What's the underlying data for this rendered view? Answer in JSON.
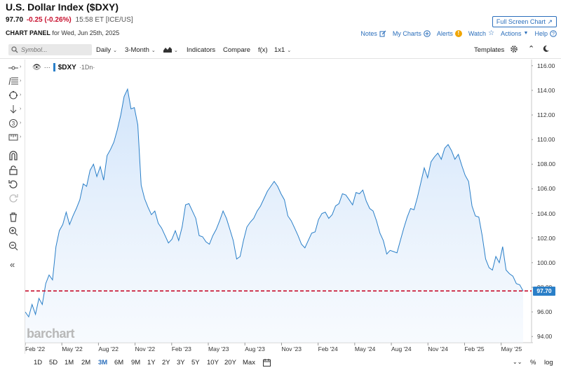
{
  "header": {
    "title": "U.S. Dollar Index ($DXY)",
    "price": "97.70",
    "change": "-0.25 (-0.26%)",
    "time_source": "15:58 ET [ICE/US]",
    "panel_label": "CHART PANEL",
    "panel_date": "for Wed, Jun 25th, 2025",
    "fullscreen_label": "Full Screen Chart",
    "links": {
      "notes": "Notes",
      "my_charts": "My Charts",
      "alerts": "Alerts",
      "watch": "Watch",
      "actions": "Actions",
      "help": "Help"
    }
  },
  "toolbar": {
    "search_placeholder": "Symbol...",
    "period": "Daily",
    "range": "3-Month",
    "indicators": "Indicators",
    "compare": "Compare",
    "fx": "f(x)",
    "layout": "1x1",
    "templates": "Templates"
  },
  "legend": {
    "symbol": "$DXY",
    "interval": "·1Dn·"
  },
  "watermark": "barchart",
  "range_buttons": [
    "1D",
    "5D",
    "1M",
    "2M",
    "3M",
    "6M",
    "9M",
    "1Y",
    "2Y",
    "3Y",
    "5Y",
    "10Y",
    "20Y",
    "Max"
  ],
  "range_active": "3M",
  "footer_right": {
    "percent": "%",
    "log": "log"
  },
  "colors": {
    "line": "#2a7fc8",
    "fill": "#dbeafb",
    "last_price": "#c8102e",
    "accent": "#2a6ebb"
  },
  "chart_data": {
    "type": "area",
    "title": "U.S. Dollar Index ($DXY)",
    "xlabel": "",
    "ylabel": "",
    "ylim": [
      93.5,
      116.5
    ],
    "x_ticks": [
      "Feb '22",
      "May '22",
      "Aug '22",
      "Nov '22",
      "Feb '23",
      "May '23",
      "Aug '23",
      "Nov '23",
      "Feb '24",
      "May '24",
      "Aug '24",
      "Nov '24",
      "Feb '25",
      "May '25"
    ],
    "y_ticks": [
      "94.00",
      "96.00",
      "98.00",
      "100.00",
      "102.00",
      "104.00",
      "106.00",
      "108.00",
      "110.00",
      "112.00",
      "114.00",
      "116.00"
    ],
    "last_price": 97.7,
    "last_price_label": "97.70",
    "series": [
      {
        "values": [
          96.0,
          95.6,
          96.6,
          95.8,
          97.1,
          96.6,
          98.3,
          99.0,
          98.6,
          101.3,
          102.6,
          103.1,
          104.1,
          103.1,
          103.8,
          104.4,
          105.1,
          106.4,
          106.2,
          107.5,
          108.0,
          107.0,
          107.8,
          106.7,
          108.7,
          109.2,
          109.8,
          110.8,
          112.0,
          113.5,
          114.1,
          112.5,
          112.6,
          111.2,
          106.3,
          105.2,
          104.5,
          103.9,
          104.2,
          103.2,
          102.8,
          102.2,
          101.6,
          101.9,
          102.6,
          101.8,
          102.9,
          104.7,
          104.8,
          104.2,
          103.6,
          102.2,
          102.1,
          101.7,
          101.5,
          102.2,
          102.7,
          103.4,
          104.2,
          103.6,
          102.7,
          101.8,
          100.3,
          100.5,
          101.8,
          102.9,
          103.3,
          103.6,
          104.2,
          104.6,
          105.2,
          105.8,
          106.2,
          106.6,
          106.2,
          105.6,
          105.1,
          103.8,
          103.4,
          102.8,
          102.2,
          101.5,
          101.2,
          101.8,
          102.4,
          102.5,
          103.5,
          104.0,
          104.1,
          103.6,
          103.9,
          104.6,
          104.8,
          105.6,
          105.5,
          105.1,
          104.7,
          105.7,
          105.6,
          105.9,
          105.0,
          104.4,
          104.2,
          103.4,
          102.4,
          101.8,
          100.7,
          101.0,
          100.9,
          100.8,
          101.8,
          102.8,
          103.7,
          104.4,
          104.3,
          105.3,
          106.5,
          107.7,
          106.9,
          108.2,
          108.6,
          108.9,
          108.4,
          109.3,
          109.6,
          109.1,
          108.4,
          108.8,
          107.9,
          107.1,
          106.6,
          104.6,
          103.8,
          103.7,
          102.2,
          100.3,
          99.6,
          99.4,
          100.5,
          100.0,
          101.3,
          99.4,
          99.1,
          98.9,
          98.3,
          98.2,
          97.7
        ]
      }
    ]
  }
}
